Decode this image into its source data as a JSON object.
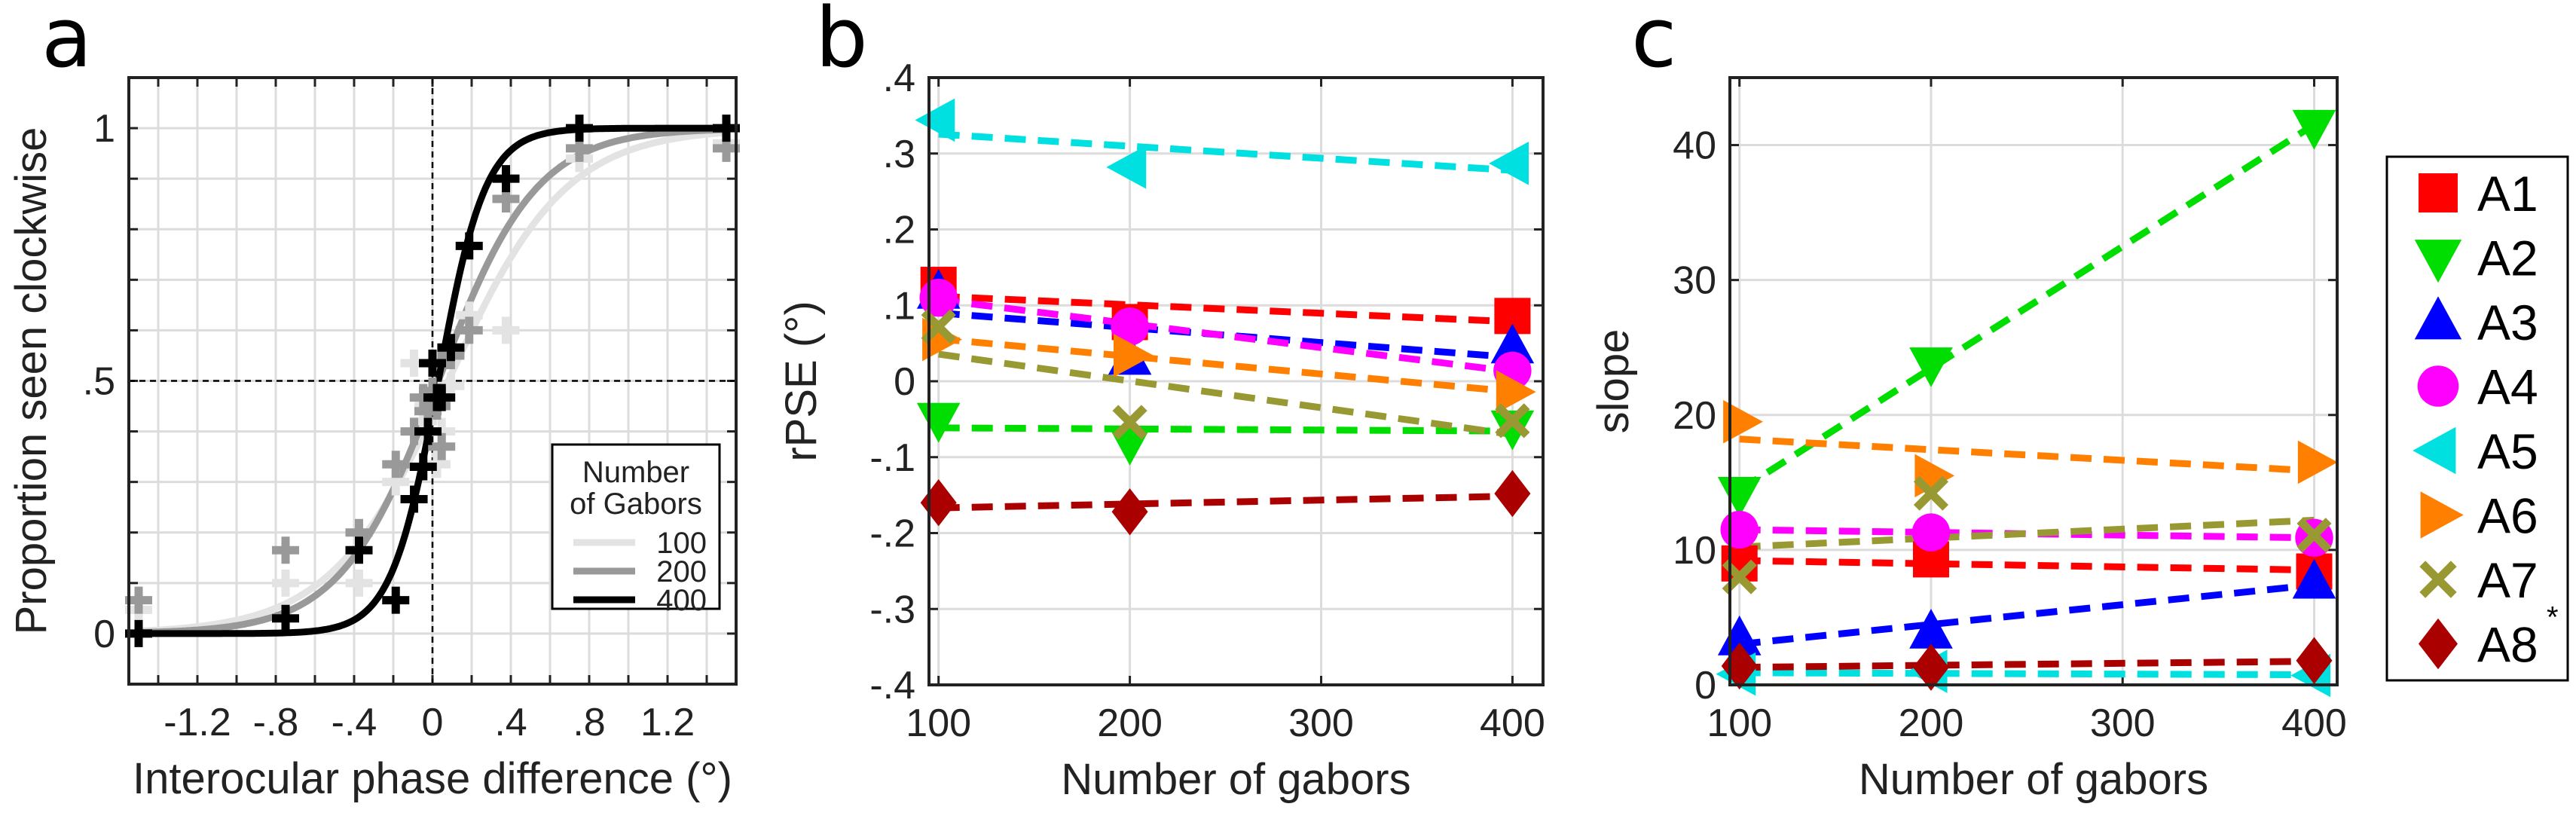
{
  "chart_data": [
    {
      "panel": "a",
      "type": "line",
      "xlabel": "Interocular phase difference (°)",
      "ylabel": "Proportion seen clockwise",
      "xlim": [
        -1.55,
        1.55
      ],
      "ylim": [
        -0.1,
        1.1
      ],
      "xticks": [
        -1.2,
        -0.8,
        -0.4,
        0,
        0.4,
        0.8,
        1.2
      ],
      "xtick_labels": [
        "-1.2",
        "-.8",
        "-.4",
        "0",
        ".4",
        ".8",
        "1.2"
      ],
      "yticks": [
        0,
        0.5,
        1
      ],
      "ytick_labels": [
        "0",
        ".5",
        "1"
      ],
      "grid": true,
      "reference_lines": {
        "x": 0,
        "y": 0.5
      },
      "legend": {
        "title_line1": "Number",
        "title_line2": "of Gabors",
        "placement": "bottom-right"
      },
      "x": [
        -1.5,
        -0.75,
        -0.375,
        -0.1875,
        -0.094,
        -0.047,
        -0.023,
        0,
        0.023,
        0.047,
        0.094,
        0.1875,
        0.375,
        0.75,
        1.5
      ],
      "series": [
        {
          "name": "100",
          "color": "#e3e3e3",
          "fit": {
            "mu": 0.08,
            "scale": 0.3
          },
          "values": [
            0.047,
            0.1,
            0.1,
            0.3,
            0.535,
            0.42,
            0.45,
            0.47,
            0.335,
            0.4,
            0.49,
            0.63,
            0.6,
            0.94,
            0.97
          ]
        },
        {
          "name": "200",
          "color": "#999999",
          "fit": {
            "mu": 0.03,
            "scale": 0.25
          },
          "values": [
            0.066,
            0.165,
            0.2,
            0.335,
            0.4,
            0.467,
            0.44,
            0.48,
            0.45,
            0.37,
            0.55,
            0.6,
            0.86,
            0.96,
            0.96
          ]
        },
        {
          "name": "400",
          "color": "#000000",
          "fit": {
            "mu": 0.03,
            "scale": 0.12
          },
          "values": [
            0.0,
            0.03,
            0.165,
            0.066,
            0.266,
            0.33,
            0.4,
            0.535,
            0.467,
            0.467,
            0.566,
            0.767,
            0.9,
            1.0,
            1.0
          ]
        }
      ]
    },
    {
      "panel": "b",
      "type": "scatter",
      "xlabel": "Number of gabors",
      "ylabel": "rPSE (°)",
      "xlim": [
        95,
        416
      ],
      "ylim": [
        -0.4,
        0.4
      ],
      "xticks": [
        100,
        200,
        300,
        400
      ],
      "xtick_labels": [
        "100",
        "200",
        "300",
        "400"
      ],
      "yticks": [
        0.4,
        0.3,
        0.2,
        0.1,
        0,
        -0.1,
        -0.2,
        -0.3,
        -0.4
      ],
      "ytick_labels": [
        ".4",
        ".3",
        ".2",
        ".1",
        "0",
        "-.1",
        "-.2",
        "-.3",
        "-.4"
      ],
      "grid": true,
      "fit_lines": "linear, dashed",
      "x": [
        100,
        200,
        400
      ],
      "series": [
        {
          "name": "A1",
          "values": [
            0.127,
            0.078,
            0.086
          ]
        },
        {
          "name": "A2",
          "values": [
            -0.05,
            -0.08,
            -0.06
          ]
        },
        {
          "name": "A3",
          "values": [
            0.117,
            0.03,
            0.045
          ]
        },
        {
          "name": "A4",
          "values": [
            0.11,
            0.072,
            0.014
          ]
        },
        {
          "name": "A5",
          "values": [
            0.344,
            0.282,
            0.287
          ]
        },
        {
          "name": "A6",
          "values": [
            0.055,
            0.034,
            -0.014
          ]
        },
        {
          "name": "A7",
          "values": [
            0.072,
            -0.054,
            -0.052
          ]
        },
        {
          "name": "A8",
          "values": [
            -0.16,
            -0.172,
            -0.148
          ]
        }
      ]
    },
    {
      "panel": "c",
      "type": "scatter",
      "xlabel": "Number of gabors",
      "ylabel": "slope",
      "xlim": [
        95,
        412
      ],
      "ylim": [
        0,
        45
      ],
      "xticks": [
        100,
        200,
        300,
        400
      ],
      "xtick_labels": [
        "100",
        "200",
        "300",
        "400"
      ],
      "yticks": [
        0,
        10,
        20,
        30,
        40
      ],
      "ytick_labels": [
        "0",
        "10",
        "20",
        "30",
        "40"
      ],
      "grid": true,
      "fit_lines": "linear, dashed",
      "x": [
        100,
        200,
        400
      ],
      "series": [
        {
          "name": "A1",
          "values": [
            9.0,
            9.3,
            8.4
          ]
        },
        {
          "name": "A2",
          "values": [
            14.2,
            23.8,
            41.4
          ]
        },
        {
          "name": "A3",
          "values": [
            3.4,
            3.9,
            7.6
          ]
        },
        {
          "name": "A4",
          "values": [
            11.5,
            11.3,
            10.9
          ]
        },
        {
          "name": "A5",
          "values": [
            0.8,
            1.0,
            0.7
          ]
        },
        {
          "name": "A6",
          "values": [
            19.5,
            15.5,
            16.5
          ]
        },
        {
          "name": "A7",
          "values": [
            8.0,
            14.2,
            11.1
          ]
        },
        {
          "name": "A8",
          "values": [
            1.4,
            1.3,
            1.8
          ]
        }
      ],
      "legend": {
        "placement": "right-outside",
        "asterisk_on": "A8",
        "asterisk": "*"
      }
    }
  ],
  "observers": [
    {
      "name": "A1",
      "color": "#ff0000",
      "marker": "square"
    },
    {
      "name": "A2",
      "color": "#00dd00",
      "marker": "triangle-down"
    },
    {
      "name": "A3",
      "color": "#0000ff",
      "marker": "triangle-up"
    },
    {
      "name": "A4",
      "color": "#ff00ff",
      "marker": "circle"
    },
    {
      "name": "A5",
      "color": "#00e0e0",
      "marker": "triangle-left"
    },
    {
      "name": "A6",
      "color": "#ff8000",
      "marker": "triangle-right"
    },
    {
      "name": "A7",
      "color": "#999933",
      "marker": "x"
    },
    {
      "name": "A8",
      "color": "#aa0000",
      "marker": "diamond"
    }
  ],
  "panel_labels": [
    "a",
    "b",
    "c"
  ]
}
